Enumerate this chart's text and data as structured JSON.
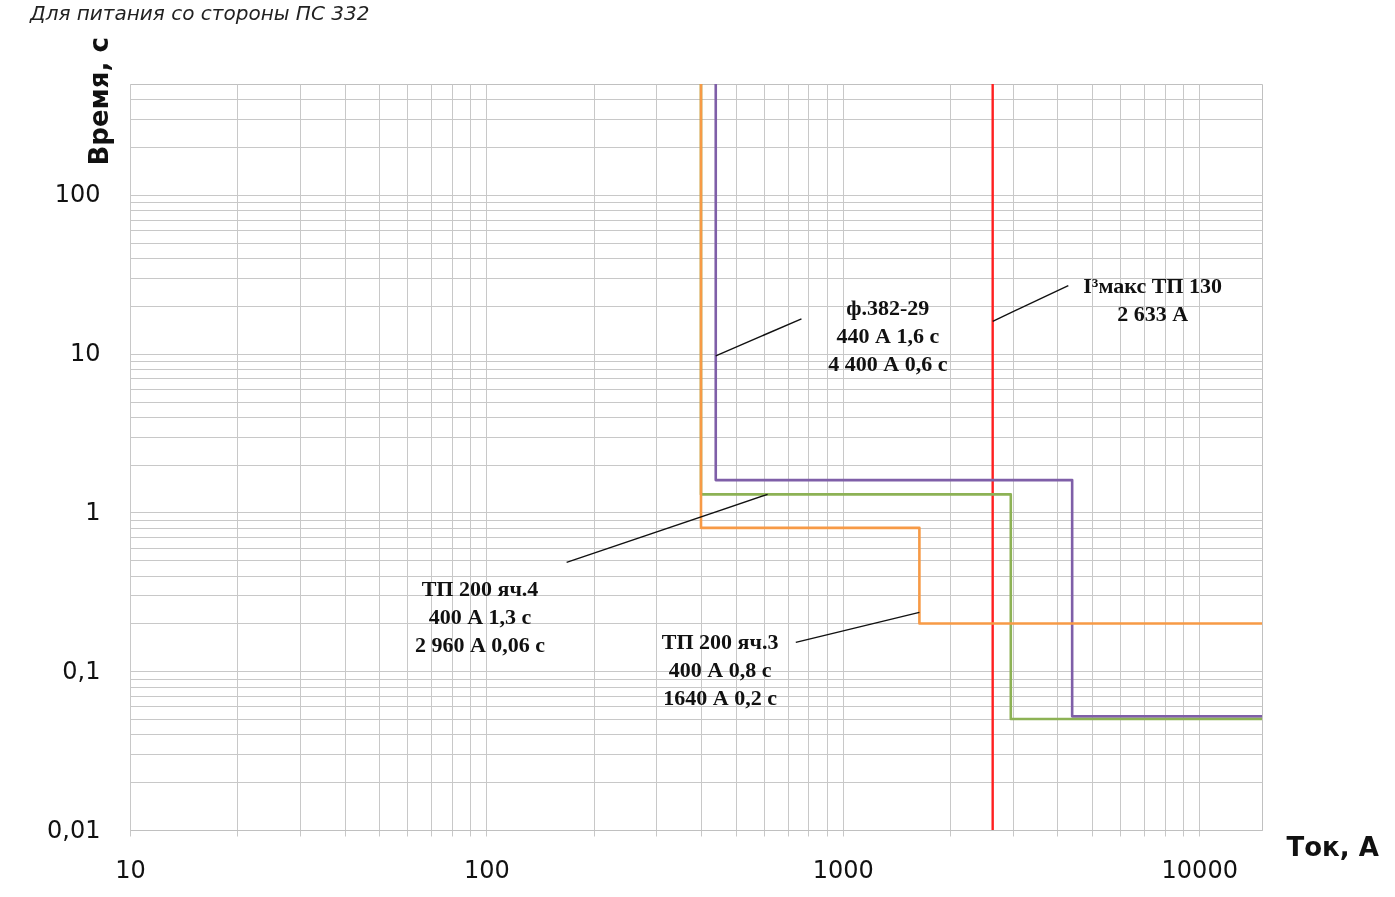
{
  "chart_data": {
    "type": "line",
    "title": "Для питания со стороны ПС 332",
    "xlabel": "Ток, А",
    "ylabel": "Время, с",
    "log": "xy",
    "grid": true,
    "marker": "none",
    "line_style": "solid",
    "xlim": [
      10,
      15000
    ],
    "ylim": [
      0.01,
      500
    ],
    "xticks": [
      10,
      {
        "value": 20,
        "label": null
      },
      {
        "value": 30,
        "label": null
      },
      {
        "value": 40,
        "label": null
      },
      {
        "value": 50,
        "label": null
      },
      {
        "value": 60,
        "label": null
      },
      {
        "value": 70,
        "label": null
      },
      {
        "value": 80,
        "label": null
      },
      {
        "value": 90,
        "label": null
      },
      100,
      {
        "value": 200,
        "label": null
      },
      {
        "value": 300,
        "label": null
      },
      {
        "value": 400,
        "label": null
      },
      {
        "value": 500,
        "label": null
      },
      {
        "value": 600,
        "label": null
      },
      {
        "value": 700,
        "label": null
      },
      {
        "value": 800,
        "label": null
      },
      {
        "value": 900,
        "label": null
      },
      1000,
      {
        "value": 2000,
        "label": null
      },
      {
        "value": 3000,
        "label": null
      },
      {
        "value": 4000,
        "label": null
      },
      {
        "value": 5000,
        "label": null
      },
      {
        "value": 6000,
        "label": null
      },
      {
        "value": 7000,
        "label": null
      },
      {
        "value": 8000,
        "label": null
      },
      {
        "value": 9000,
        "label": null
      },
      10000
    ],
    "yticks": [
      {
        "value": 0.01,
        "label": "0,01"
      },
      {
        "value": 0.02,
        "label": null
      },
      {
        "value": 0.03,
        "label": null
      },
      {
        "value": 0.04,
        "label": null
      },
      {
        "value": 0.05,
        "label": null
      },
      {
        "value": 0.06,
        "label": null
      },
      {
        "value": 0.07,
        "label": null
      },
      {
        "value": 0.08,
        "label": null
      },
      {
        "value": 0.09,
        "label": null
      },
      {
        "value": 0.1,
        "label": "0,1"
      },
      {
        "value": 0.2,
        "label": null
      },
      {
        "value": 0.3,
        "label": null
      },
      {
        "value": 0.4,
        "label": null
      },
      {
        "value": 0.5,
        "label": null
      },
      {
        "value": 0.6,
        "label": null
      },
      {
        "value": 0.7,
        "label": null
      },
      {
        "value": 0.8,
        "label": null
      },
      {
        "value": 0.9,
        "label": null
      },
      1,
      {
        "value": 2,
        "label": null
      },
      {
        "value": 3,
        "label": null
      },
      {
        "value": 4,
        "label": null
      },
      {
        "value": 5,
        "label": null
      },
      {
        "value": 6,
        "label": null
      },
      {
        "value": 7,
        "label": null
      },
      {
        "value": 8,
        "label": null
      },
      {
        "value": 9,
        "label": null
      },
      10,
      {
        "value": 20,
        "label": null
      },
      {
        "value": 30,
        "label": null
      },
      {
        "value": 40,
        "label": null
      },
      {
        "value": 50,
        "label": null
      },
      {
        "value": 60,
        "label": null
      },
      {
        "value": 70,
        "label": null
      },
      {
        "value": 80,
        "label": null
      },
      {
        "value": 90,
        "label": null
      },
      100,
      {
        "value": 200,
        "label": null
      },
      {
        "value": 300,
        "label": null
      },
      {
        "value": 400,
        "label": null
      }
    ],
    "series": [
      {
        "color": "#7f5fa8",
        "x": [
          440,
          440,
          4400,
          4400,
          15000
        ],
        "values": [
          500,
          1.6,
          1.6,
          0.052,
          0.052
        ]
      },
      {
        "color": "#8db255",
        "x": [
          400,
          400,
          2960,
          2960,
          15000
        ],
        "values": [
          500,
          1.3,
          1.3,
          0.05,
          0.05
        ]
      },
      {
        "color": "#f79a46",
        "x": [
          400,
          400,
          1640,
          1640,
          15000
        ],
        "values": [
          500,
          0.8,
          0.8,
          0.2,
          0.2
        ]
      }
    ],
    "ref_lines": [
      {
        "axis": "x",
        "value": 2633,
        "color": "#ff2020"
      }
    ],
    "annotations": [
      {
        "text": "ф.382-29\n440 А 1,6 с\n4 400 А 0,6 с",
        "x": 440,
        "y": 9.7
      },
      {
        "text": "I³макс ТП 130\n2 633 А",
        "x": 2633,
        "y": 16
      },
      {
        "text": "ТП 200 яч.4\n400 А 1,3 с\n2 960 А 0,06 с",
        "x": 615,
        "y": 1.3
      },
      {
        "text": "ТП 200 яч.3\n400 А 0,8 с\n1640 А 0,2 с",
        "x": 1640,
        "y": 0.235
      }
    ]
  }
}
